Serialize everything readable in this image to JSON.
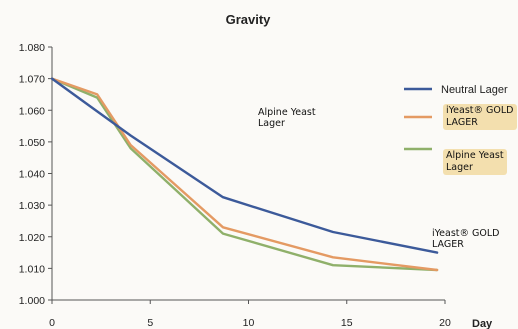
{
  "chart_data": {
    "type": "line",
    "title": "Gravity",
    "xlabel": "Day",
    "ylabel": "",
    "xlim": [
      0,
      20
    ],
    "ylim": [
      1.0,
      1.08
    ],
    "x_ticks": [
      0,
      5,
      10,
      15,
      20
    ],
    "y_ticks": [
      "1.000",
      "1.010",
      "1.020",
      "1.030",
      "1.040",
      "1.050",
      "1.060",
      "1.070",
      "1.080"
    ],
    "grid": false,
    "legend_position": "right",
    "series": [
      {
        "name": "Neutral Lager",
        "color": "#3c5a9a",
        "x": [
          0,
          2,
          4,
          8.7,
          14.3,
          19.6
        ],
        "y": [
          1.07,
          1.061,
          1.052,
          1.0325,
          1.0215,
          1.015
        ]
      },
      {
        "name": "iYeast® GOLD LAGER",
        "color": "#e49a63",
        "x": [
          0,
          2.3,
          4,
          8.7,
          14.3,
          19.6
        ],
        "y": [
          1.07,
          1.065,
          1.049,
          1.023,
          1.0135,
          1.0095
        ]
      },
      {
        "name": "Alpine Yeast Lager",
        "color": "#8fb06a",
        "x": [
          0,
          2.3,
          4,
          8.7,
          14.3,
          19.6
        ],
        "y": [
          1.07,
          1.064,
          1.048,
          1.021,
          1.011,
          1.0095
        ]
      }
    ],
    "annotations": [
      {
        "text": "Alpine Yeast\nLager"
      },
      {
        "text": "iYeast® GOLD\nLAGER"
      }
    ],
    "legend_tags": [
      {
        "text": "iYeast® GOLD\nLAGER"
      },
      {
        "text": "Alpine Yeast\nLager"
      }
    ]
  }
}
